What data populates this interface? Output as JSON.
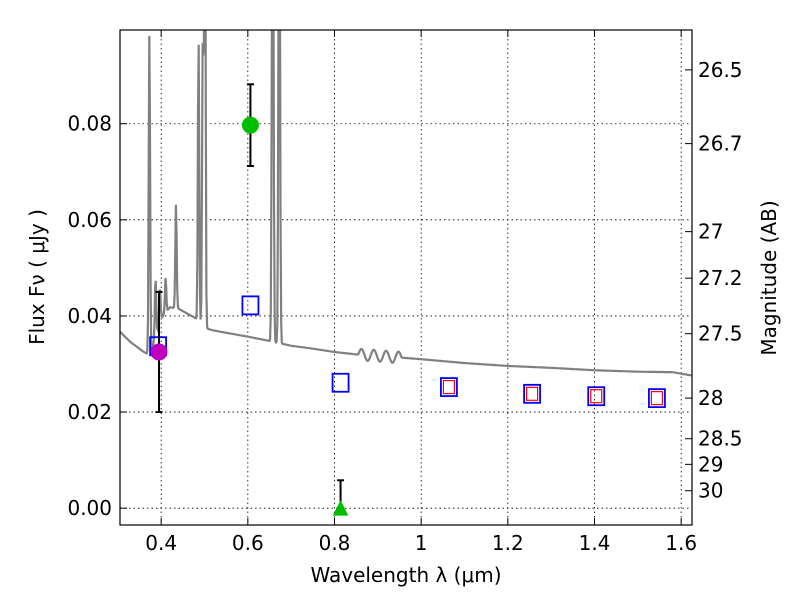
{
  "chart_data": {
    "type": "scatter",
    "title": "",
    "xlabel": "Wavelength  λ (μm)",
    "ylabel": "Flux  Fν  ( μJy )",
    "y2label": "Magnitude (AB)",
    "xlim": [
      0.305,
      1.625
    ],
    "ylim": [
      -0.0035,
      0.0995
    ],
    "grid": true,
    "x_ticks": [
      {
        "value": 0.4,
        "label": "0.4"
      },
      {
        "value": 0.6,
        "label": "0.6"
      },
      {
        "value": 0.8,
        "label": "0.8"
      },
      {
        "value": 1.0,
        "label": "1"
      },
      {
        "value": 1.2,
        "label": "1.2"
      },
      {
        "value": 1.4,
        "label": "1.4"
      },
      {
        "value": 1.6,
        "label": "1.6"
      }
    ],
    "y_ticks": [
      {
        "value": 0.0,
        "label": "0.00"
      },
      {
        "value": 0.02,
        "label": "0.02"
      },
      {
        "value": 0.04,
        "label": "0.04"
      },
      {
        "value": 0.06,
        "label": "0.06"
      },
      {
        "value": 0.08,
        "label": "0.08"
      }
    ],
    "y2_ticks": [
      {
        "value": 26.5,
        "label": "26.5"
      },
      {
        "value": 26.7,
        "label": "26.7"
      },
      {
        "value": 27,
        "label": "27"
      },
      {
        "value": 27.2,
        "label": "27.2"
      },
      {
        "value": 27.5,
        "label": "27.5"
      },
      {
        "value": 28,
        "label": "28"
      },
      {
        "value": 28.5,
        "label": "28.5"
      },
      {
        "value": 29,
        "label": "29"
      },
      {
        "value": 30,
        "label": "30"
      }
    ],
    "model_spectrum": {
      "name": "SED model",
      "color": "#808080",
      "continuum": [
        [
          0.305,
          0.0367
        ],
        [
          0.33,
          0.0345
        ],
        [
          0.36,
          0.0325
        ],
        [
          0.375,
          0.0318
        ],
        [
          0.385,
          0.035
        ],
        [
          0.4,
          0.0395
        ],
        [
          0.42,
          0.0418
        ],
        [
          0.44,
          0.0415
        ],
        [
          0.46,
          0.0405
        ],
        [
          0.48,
          0.0395
        ],
        [
          0.5,
          0.0375
        ],
        [
          0.52,
          0.037
        ],
        [
          0.55,
          0.0365
        ],
        [
          0.6,
          0.0357
        ],
        [
          0.65,
          0.0348
        ],
        [
          0.7,
          0.0338
        ],
        [
          0.75,
          0.0332
        ],
        [
          0.8,
          0.0325
        ],
        [
          0.85,
          0.032
        ],
        [
          0.9,
          0.0317
        ],
        [
          1.0,
          0.031
        ],
        [
          1.1,
          0.0302
        ],
        [
          1.2,
          0.0296
        ],
        [
          1.3,
          0.0292
        ],
        [
          1.4,
          0.0287
        ],
        [
          1.5,
          0.0284
        ],
        [
          1.58,
          0.0283
        ],
        [
          1.625,
          0.0276
        ]
      ],
      "emission_lines": [
        {
          "x": 0.3728,
          "peak": 0.0995
        },
        {
          "x": 0.3869,
          "peak": 0.048
        },
        {
          "x": 0.397,
          "peak": 0.046
        },
        {
          "x": 0.4102,
          "peak": 0.048
        },
        {
          "x": 0.4342,
          "peak": 0.0633
        },
        {
          "x": 0.4862,
          "peak": 0.0975
        },
        {
          "x": 0.496,
          "peak": 0.0995
        },
        {
          "x": 0.5008,
          "peak": 0.0995
        },
        {
          "x": 0.5008,
          "peak": 0.0995
        },
        {
          "x": 0.6564,
          "peak": 0.0995
        },
        {
          "x": 0.6585,
          "peak": 0.0995
        },
        {
          "x": 0.6718,
          "peak": 0.0995
        },
        {
          "x": 0.6733,
          "peak": 0.0995
        }
      ]
    },
    "observed": [
      {
        "name": "photometry 1",
        "x": 0.395,
        "y": 0.0325,
        "err": 0.0125,
        "marker": "circle",
        "color": "#bf00bf"
      },
      {
        "name": "photometry 2",
        "x": 0.606,
        "y": 0.0797,
        "err": 0.0085,
        "marker": "circle",
        "color": "#00bf00"
      },
      {
        "name": "photometry 3",
        "x": 0.814,
        "y": 0.0,
        "err": 0.0058,
        "marker": "triangle",
        "color": "#00bf00"
      }
    ],
    "model_photometry_blue": [
      {
        "x": 0.393,
        "y": 0.0337
      },
      {
        "x": 0.606,
        "y": 0.0422
      },
      {
        "x": 0.814,
        "y": 0.0261
      },
      {
        "x": 1.064,
        "y": 0.0252
      },
      {
        "x": 1.256,
        "y": 0.0238
      },
      {
        "x": 1.404,
        "y": 0.0233
      },
      {
        "x": 1.544,
        "y": 0.0229
      }
    ],
    "model_photometry_red": [
      {
        "x": 1.064,
        "y": 0.0252
      },
      {
        "x": 1.256,
        "y": 0.0238
      },
      {
        "x": 1.404,
        "y": 0.0233
      },
      {
        "x": 1.544,
        "y": 0.0229
      }
    ],
    "colors": {
      "axes": "#000000",
      "grid": "#000000",
      "spectrum": "#808080",
      "blue_square": "#0000ff",
      "red_square": "#ff0000",
      "errorbar": "#000000"
    }
  }
}
